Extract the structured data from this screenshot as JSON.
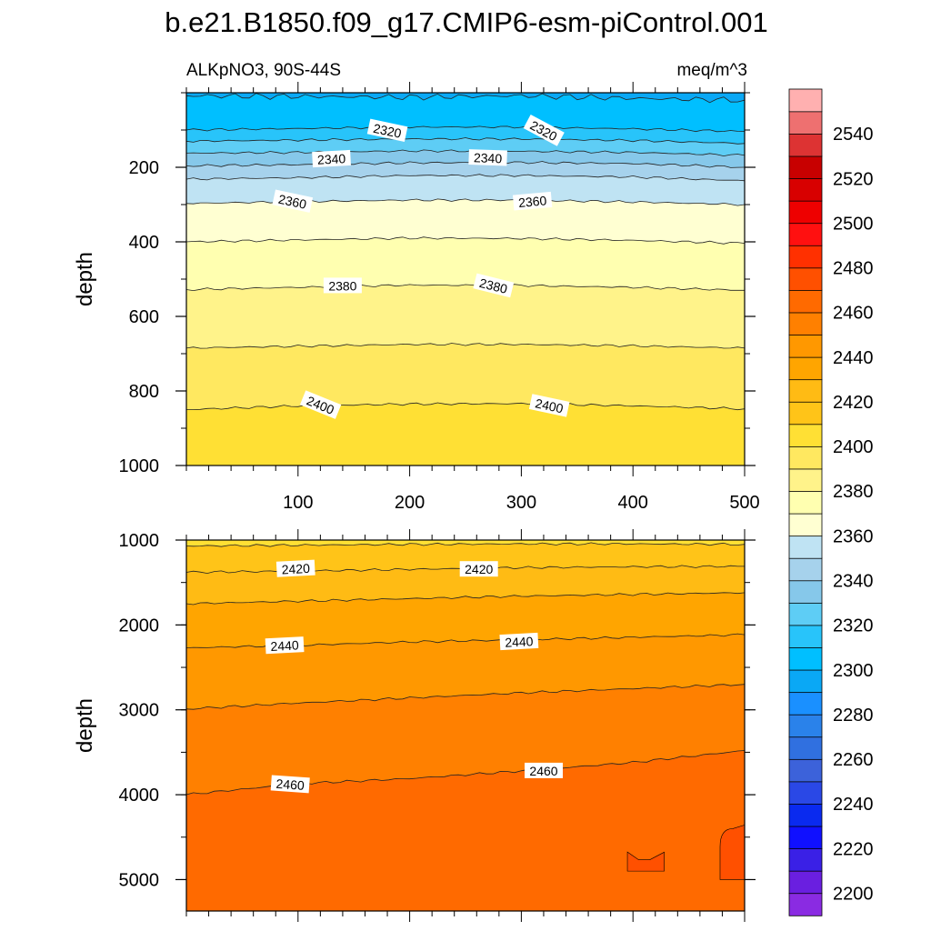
{
  "chart_data": {
    "type": "contour",
    "title": "b.e21.B1850.f09_g17.CMIP6-esm-piControl.001",
    "variable_label": "ALKpNO3, 90S-44S",
    "units_label": "meq/m^3",
    "contour_interval": 10,
    "panels": [
      {
        "name": "upper",
        "ylabel": "depth",
        "ylim": [
          0,
          1000
        ],
        "y_reversed": true,
        "xlim": [
          0,
          500
        ],
        "x_ticks": [
          "100",
          "200",
          "300",
          "400",
          "500"
        ],
        "y_ticks": [
          "200",
          "400",
          "600",
          "800",
          "1000"
        ],
        "isolines": [
          {
            "value": 2300,
            "depth": [
              8,
              10,
              12,
              8,
              15,
              20
            ]
          },
          {
            "value": 2310,
            "depth": [
              100,
              96,
              92,
              92,
              97,
              104
            ]
          },
          {
            "value": 2320,
            "depth": [
              130,
              127,
              124,
              124,
              128,
              136
            ]
          },
          {
            "value": 2330,
            "depth": [
              162,
              160,
              156,
              157,
              160,
              168
            ]
          },
          {
            "value": 2340,
            "depth": [
              196,
              193,
              188,
              187,
              190,
              200
            ]
          },
          {
            "value": 2350,
            "depth": [
              232,
              228,
              222,
              222,
              226,
              236
            ]
          },
          {
            "value": 2360,
            "depth": [
              297,
              292,
              288,
              288,
              293,
              300
            ]
          },
          {
            "value": 2370,
            "depth": [
              400,
              395,
              390,
              391,
              396,
              404
            ]
          },
          {
            "value": 2380,
            "depth": [
              528,
              522,
              516,
              517,
              522,
              530
            ]
          },
          {
            "value": 2390,
            "depth": [
              685,
              680,
              675,
              675,
              679,
              685
            ]
          },
          {
            "value": 2400,
            "depth": [
              850,
              840,
              835,
              834,
              840,
              848
            ]
          }
        ],
        "labels": [
          {
            "text": "2320",
            "x": 180,
            "depth": 102,
            "angle": 12
          },
          {
            "text": "2320",
            "x": 320,
            "depth": 102,
            "angle": 28
          },
          {
            "text": "2340",
            "x": 130,
            "depth": 178,
            "angle": -3
          },
          {
            "text": "2340",
            "x": 270,
            "depth": 175,
            "angle": 2
          },
          {
            "text": "2360",
            "x": 95,
            "depth": 292,
            "angle": 12
          },
          {
            "text": "2360",
            "x": 310,
            "depth": 292,
            "angle": -5
          },
          {
            "text": "2380",
            "x": 140,
            "depth": 518,
            "angle": 0
          },
          {
            "text": "2380",
            "x": 275,
            "depth": 518,
            "angle": 14
          },
          {
            "text": "2400",
            "x": 120,
            "depth": 838,
            "angle": 22
          },
          {
            "text": "2400",
            "x": 325,
            "depth": 840,
            "angle": 12
          }
        ]
      },
      {
        "name": "lower",
        "ylabel": "depth",
        "ylim": [
          1000,
          5370
        ],
        "y_reversed": true,
        "xlim": [
          0,
          500
        ],
        "y_ticks": [
          "1000",
          "2000",
          "3000",
          "4000",
          "5000"
        ],
        "isolines": [
          {
            "value": 2410,
            "depth": [
              1070,
              1060,
              1050,
              1045,
              1045,
              1050
            ]
          },
          {
            "value": 2420,
            "depth": [
              1380,
              1365,
              1345,
              1325,
              1315,
              1310
            ]
          },
          {
            "value": 2430,
            "depth": [
              1750,
              1720,
              1690,
              1660,
              1640,
              1620
            ]
          },
          {
            "value": 2440,
            "depth": [
              2270,
              2240,
              2200,
              2175,
              2145,
              2115
            ]
          },
          {
            "value": 2450,
            "depth": [
              2990,
              2920,
              2860,
              2800,
              2750,
              2700
            ]
          },
          {
            "value": 2460,
            "depth": [
              4000,
              3870,
              3810,
              3720,
              3620,
              3480
            ]
          }
        ],
        "labels": [
          {
            "text": "2420",
            "x": 98,
            "depth": 1340,
            "angle": -3
          },
          {
            "text": "2420",
            "x": 262,
            "depth": 1345,
            "angle": 0
          },
          {
            "text": "2440",
            "x": 88,
            "depth": 2245,
            "angle": -3
          },
          {
            "text": "2440",
            "x": 298,
            "depth": 2200,
            "angle": -3
          },
          {
            "text": "2460",
            "x": 93,
            "depth": 3880,
            "angle": 4
          },
          {
            "text": "2460",
            "x": 320,
            "depth": 3720,
            "angle": 0
          }
        ],
        "patches": [
          {
            "value": 2470,
            "x": [
              395,
              405,
              415,
              428
            ],
            "depth": [
              4600,
              4900
            ]
          },
          {
            "value": 2470,
            "x": [
              478,
              500
            ],
            "depth": [
              4400,
              5000
            ]
          }
        ]
      }
    ],
    "colorbar": {
      "levels": [
        2200,
        2210,
        2220,
        2230,
        2240,
        2250,
        2260,
        2270,
        2280,
        2290,
        2300,
        2310,
        2320,
        2330,
        2340,
        2350,
        2360,
        2370,
        2380,
        2390,
        2400,
        2410,
        2420,
        2430,
        2440,
        2450,
        2460,
        2470,
        2480,
        2490,
        2500,
        2510,
        2520,
        2530,
        2540,
        2550
      ],
      "colors": [
        "#8a2be2",
        "#6a1fe0",
        "#3a20e6",
        "#1010ff",
        "#0a2aef",
        "#2a48e6",
        "#3c62da",
        "#3070e0",
        "#2a82ea",
        "#1a90ff",
        "#0aa8f5",
        "#00bfff",
        "#28c4fa",
        "#5ecdf5",
        "#86c8ea",
        "#a6d2ec",
        "#bfe3f3",
        "#ffffd2",
        "#ffffb0",
        "#fff38a",
        "#ffe860",
        "#ffe034",
        "#ffc418",
        "#ffbb14",
        "#ffa500",
        "#ff9800",
        "#ff8000",
        "#ff6a00",
        "#ff5000",
        "#ff3000",
        "#ff1010",
        "#ee0000",
        "#d80000",
        "#c80000",
        "#dd3333",
        "#ee7070",
        "#ffb0b0"
      ],
      "tick_labels": [
        "2200",
        "2220",
        "2240",
        "2260",
        "2280",
        "2300",
        "2320",
        "2340",
        "2360",
        "2380",
        "2400",
        "2420",
        "2440",
        "2460",
        "2480",
        "2500",
        "2520",
        "2540"
      ]
    }
  }
}
